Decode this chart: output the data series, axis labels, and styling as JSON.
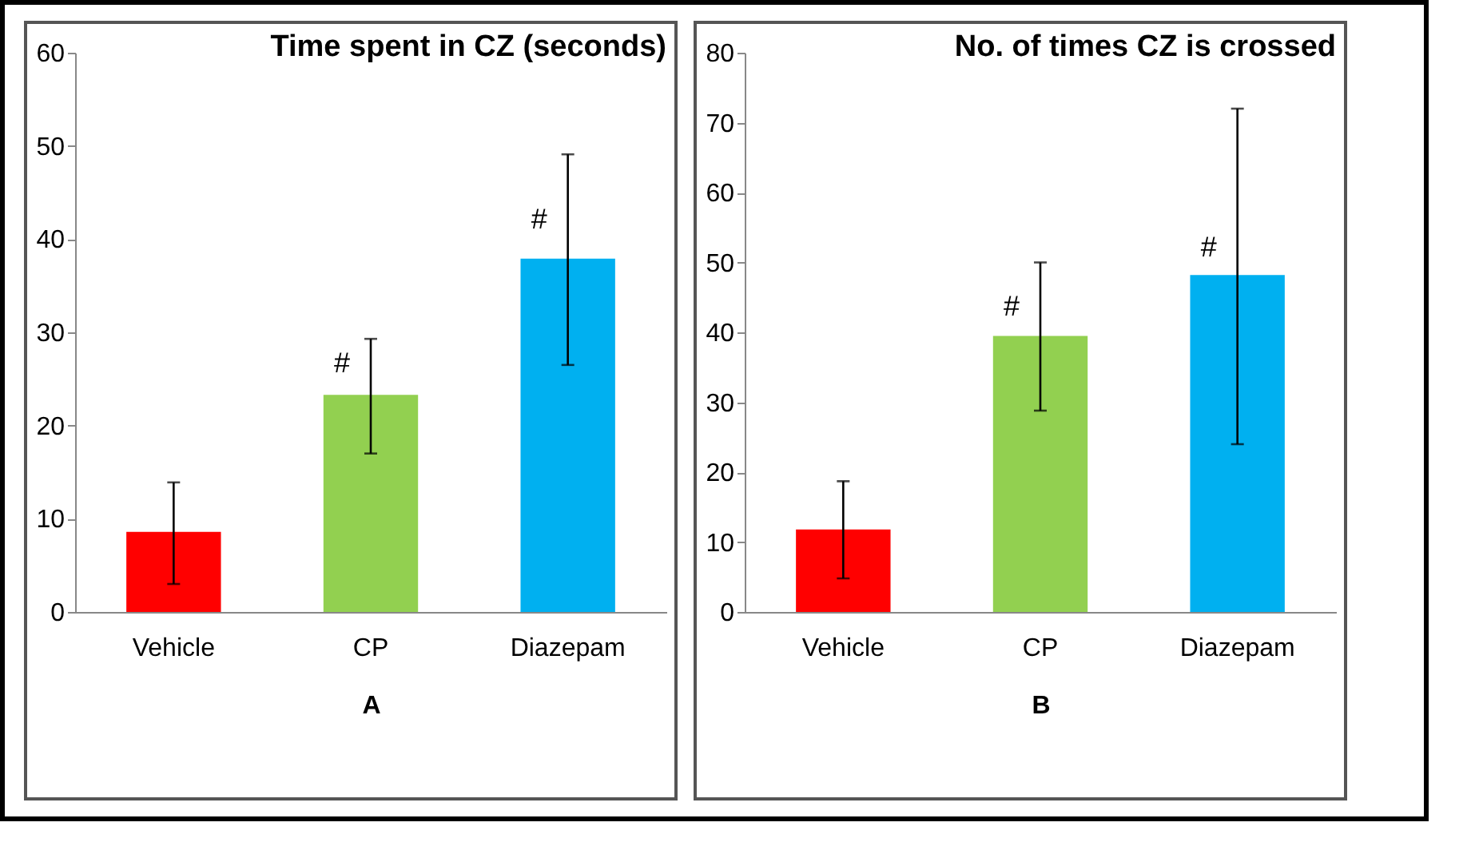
{
  "chart_data": [
    {
      "type": "bar",
      "title": "Time spent in CZ (seconds)",
      "xlabel": "A",
      "categories": [
        "Vehicle",
        "CP",
        "Diazepam"
      ],
      "values": [
        8.6,
        23.3,
        37.9
      ],
      "colors": [
        "#ff0000",
        "#92d050",
        "#00b0f0"
      ],
      "errors": [
        [
          3,
          13.9
        ],
        [
          17,
          29.3
        ],
        [
          26.5,
          49.1
        ]
      ],
      "annotations": [
        {
          "text": "#",
          "x": "CP",
          "y": 25
        },
        {
          "text": "#",
          "x": "Diazepam",
          "y": 40.5
        }
      ],
      "ylim": [
        0,
        60
      ],
      "yticks": [
        0,
        10,
        20,
        30,
        40,
        50,
        60
      ],
      "grid": false
    },
    {
      "type": "bar",
      "title": "No. of times CZ is crossed",
      "xlabel": "B",
      "categories": [
        "Vehicle",
        "CP",
        "Diazepam"
      ],
      "values": [
        11.8,
        39.5,
        48.2
      ],
      "colors": [
        "#ff0000",
        "#92d050",
        "#00b0f0"
      ],
      "errors": [
        [
          4.8,
          18.7
        ],
        [
          28.8,
          50
        ],
        [
          24,
          72
        ]
      ],
      "annotations": [
        {
          "text": "#",
          "x": "CP",
          "y": 41.5
        },
        {
          "text": "#",
          "x": "Diazepam",
          "y": 50
        }
      ],
      "ylim": [
        0,
        80
      ],
      "yticks": [
        0,
        10,
        20,
        30,
        40,
        50,
        60,
        70,
        80
      ],
      "grid": false
    }
  ]
}
